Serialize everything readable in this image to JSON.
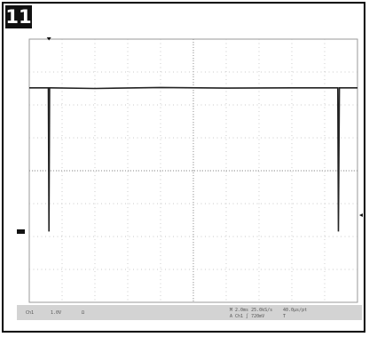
{
  "figure_number": "11",
  "chart_data": {
    "type": "line",
    "title": "",
    "xlabel": "",
    "ylabel": "",
    "grid": true,
    "x_divisions": 10,
    "y_divisions": 8,
    "xlim": [
      0,
      10
    ],
    "ylim": [
      -4,
      4
    ],
    "series": [
      {
        "x": [
          0.0,
          0.55,
          0.58,
          0.6,
          0.62,
          0.65,
          2.0,
          4.0,
          6.0,
          8.0,
          9.2,
          9.4,
          9.42,
          9.45,
          9.48,
          10.0
        ],
        "y": [
          2.52,
          2.52,
          2.52,
          -1.85,
          2.52,
          2.52,
          2.5,
          2.53,
          2.51,
          2.52,
          2.52,
          2.52,
          -1.85,
          2.52,
          2.52,
          2.52
        ]
      }
    ],
    "trigger_marker_x": 0.6,
    "ground_marker_y": -1.85,
    "level_marker_y": -1.35
  },
  "status": {
    "ch1": "Ch1",
    "ch1_scale": "1.0V",
    "coupling": "Ω",
    "timebase": "M 2.0ms  25.0kS/s",
    "record": "40.0µs/pt",
    "trigger": "A  Ch1  ∫  720mV",
    "trigger_state": "T"
  }
}
